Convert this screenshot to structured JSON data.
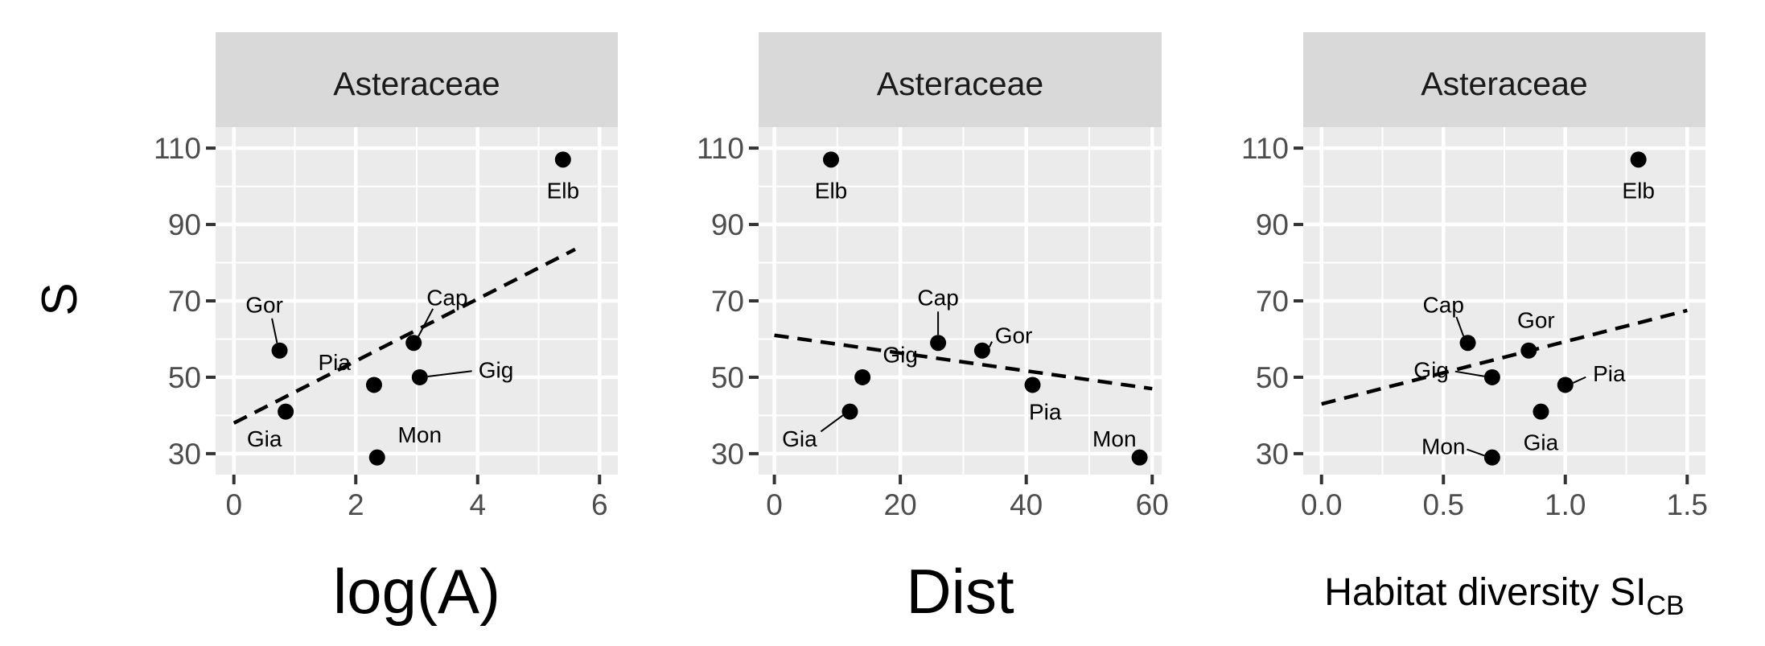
{
  "chart_data": {
    "type": "scatter",
    "ylabel": "S",
    "y_ticks": [
      30,
      50,
      70,
      90,
      110
    ],
    "panels": [
      {
        "strip": "Asteraceae",
        "xlabel": "log(A)",
        "xlabel_sub": "",
        "xlim": [
          -0.3,
          6.3
        ],
        "x_ticks": [
          {
            "v": 0,
            "label": "0"
          },
          {
            "v": 2,
            "label": "2"
          },
          {
            "v": 4,
            "label": "4"
          },
          {
            "v": 6,
            "label": "6"
          }
        ],
        "trend": [
          [
            0,
            38
          ],
          [
            5.6,
            83.5
          ]
        ],
        "points": [
          {
            "name": "Elb",
            "x": 5.4,
            "y": 107,
            "lx": 5.4,
            "ly": 99,
            "connector": false
          },
          {
            "name": "Gor",
            "x": 0.75,
            "y": 57,
            "lx": 0.5,
            "ly": 69,
            "connector": true
          },
          {
            "name": "Cap",
            "x": 2.95,
            "y": 59,
            "lx": 3.5,
            "ly": 71,
            "connector": true
          },
          {
            "name": "Pia",
            "x": 2.3,
            "y": 48,
            "lx": 1.65,
            "ly": 54,
            "connector": false
          },
          {
            "name": "Gig",
            "x": 3.05,
            "y": 50,
            "lx": 4.3,
            "ly": 52,
            "connector": true
          },
          {
            "name": "Gia",
            "x": 0.85,
            "y": 41,
            "lx": 0.5,
            "ly": 34,
            "connector": false
          },
          {
            "name": "Mon",
            "x": 2.35,
            "y": 29,
            "lx": 3.05,
            "ly": 35,
            "connector": false
          }
        ]
      },
      {
        "strip": "Asteraceae",
        "xlabel": "Dist",
        "xlabel_sub": "",
        "xlim": [
          -2.5,
          61.5
        ],
        "x_ticks": [
          {
            "v": 0,
            "label": "0"
          },
          {
            "v": 20,
            "label": "20"
          },
          {
            "v": 40,
            "label": "40"
          },
          {
            "v": 60,
            "label": "60"
          }
        ],
        "trend": [
          [
            0,
            61
          ],
          [
            60,
            47
          ]
        ],
        "points": [
          {
            "name": "Elb",
            "x": 9,
            "y": 107,
            "lx": 9,
            "ly": 99,
            "connector": false
          },
          {
            "name": "Cap",
            "x": 26,
            "y": 59,
            "lx": 26,
            "ly": 71,
            "connector": true
          },
          {
            "name": "Gor",
            "x": 33,
            "y": 57,
            "lx": 38,
            "ly": 61,
            "connector": true
          },
          {
            "name": "Gig",
            "x": 14,
            "y": 50,
            "lx": 20,
            "ly": 56,
            "connector": false
          },
          {
            "name": "Pia",
            "x": 41,
            "y": 48,
            "lx": 43,
            "ly": 41,
            "connector": false
          },
          {
            "name": "Gia",
            "x": 12,
            "y": 41,
            "lx": 4,
            "ly": 34,
            "connector": true
          },
          {
            "name": "Mon",
            "x": 58,
            "y": 29,
            "lx": 54,
            "ly": 34,
            "connector": false
          }
        ]
      },
      {
        "strip": "Asteraceae",
        "xlabel": "Habitat diversity SI",
        "xlabel_sub": "CB",
        "xlim": [
          -0.075,
          1.575
        ],
        "x_ticks": [
          {
            "v": 0,
            "label": "0.0"
          },
          {
            "v": 0.5,
            "label": "0.5"
          },
          {
            "v": 1.0,
            "label": "1.0"
          },
          {
            "v": 1.5,
            "label": "1.5"
          }
        ],
        "trend": [
          [
            0,
            43
          ],
          [
            1.5,
            67.5
          ]
        ],
        "points": [
          {
            "name": "Elb",
            "x": 1.3,
            "y": 107,
            "lx": 1.3,
            "ly": 99,
            "connector": false
          },
          {
            "name": "Cap",
            "x": 0.6,
            "y": 59,
            "lx": 0.5,
            "ly": 69,
            "connector": true
          },
          {
            "name": "Gor",
            "x": 0.85,
            "y": 57,
            "lx": 0.88,
            "ly": 65,
            "connector": false
          },
          {
            "name": "Gig",
            "x": 0.7,
            "y": 50,
            "lx": 0.45,
            "ly": 52,
            "connector": true
          },
          {
            "name": "Pia",
            "x": 1.0,
            "y": 48,
            "lx": 1.18,
            "ly": 51,
            "connector": true
          },
          {
            "name": "Gia",
            "x": 0.9,
            "y": 41,
            "lx": 0.9,
            "ly": 33,
            "connector": false
          },
          {
            "name": "Mon",
            "x": 0.7,
            "y": 29,
            "lx": 0.5,
            "ly": 32,
            "connector": true
          }
        ]
      }
    ]
  }
}
